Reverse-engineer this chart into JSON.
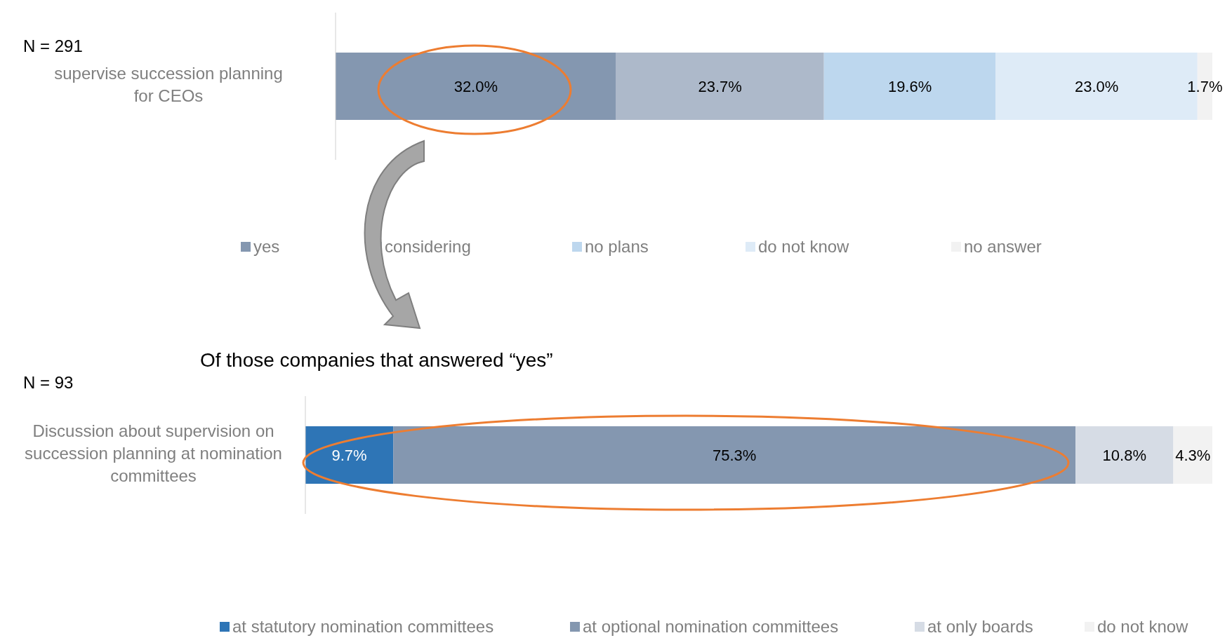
{
  "chart_data": [
    {
      "type": "bar",
      "orientation": "horizontal",
      "stacked": true,
      "legend": "bottom",
      "annotations": [
        "N = 291"
      ],
      "categories": [
        "supervise succession planning for CEOs"
      ],
      "series": [
        {
          "name": "yes",
          "color": "#8497b0",
          "values": [
            32.0
          ],
          "value_labels": [
            "32.0%"
          ]
        },
        {
          "name": "considering",
          "color": "#adb9ca",
          "values": [
            23.7
          ],
          "value_labels": [
            "23.7%"
          ]
        },
        {
          "name": "no plans",
          "color": "#bdd7ee",
          "values": [
            19.6
          ],
          "value_labels": [
            "19.6%"
          ]
        },
        {
          "name": "do not know",
          "color": "#deebf7",
          "values": [
            23.0
          ],
          "value_labels": [
            "23.0%"
          ]
        },
        {
          "name": "no answer",
          "color": "#f2f2f2",
          "values": [
            1.7
          ],
          "value_labels": [
            "1.7%"
          ]
        }
      ]
    },
    {
      "type": "bar",
      "orientation": "horizontal",
      "stacked": true,
      "legend": "bottom",
      "title": "Of those companies that answered “yes”",
      "annotations": [
        "N = 93"
      ],
      "categories": [
        "Discussion about supervision on succession planning at nomination committees"
      ],
      "series": [
        {
          "name": "at statutory nomination committees",
          "color": "#2e75b6",
          "values": [
            9.7
          ],
          "value_labels": [
            "9.7%"
          ]
        },
        {
          "name": "at optional nomination committees",
          "color": "#8497b0",
          "values": [
            75.3
          ],
          "value_labels": [
            "75.3%"
          ]
        },
        {
          "name": "at only boards",
          "color": "#d6dce5",
          "values": [
            10.8
          ],
          "value_labels": [
            "10.8%"
          ]
        },
        {
          "name": "do not know",
          "color": "#f2f2f2",
          "values": [
            4.3
          ],
          "value_labels": [
            "4.3%"
          ]
        }
      ]
    }
  ]
}
